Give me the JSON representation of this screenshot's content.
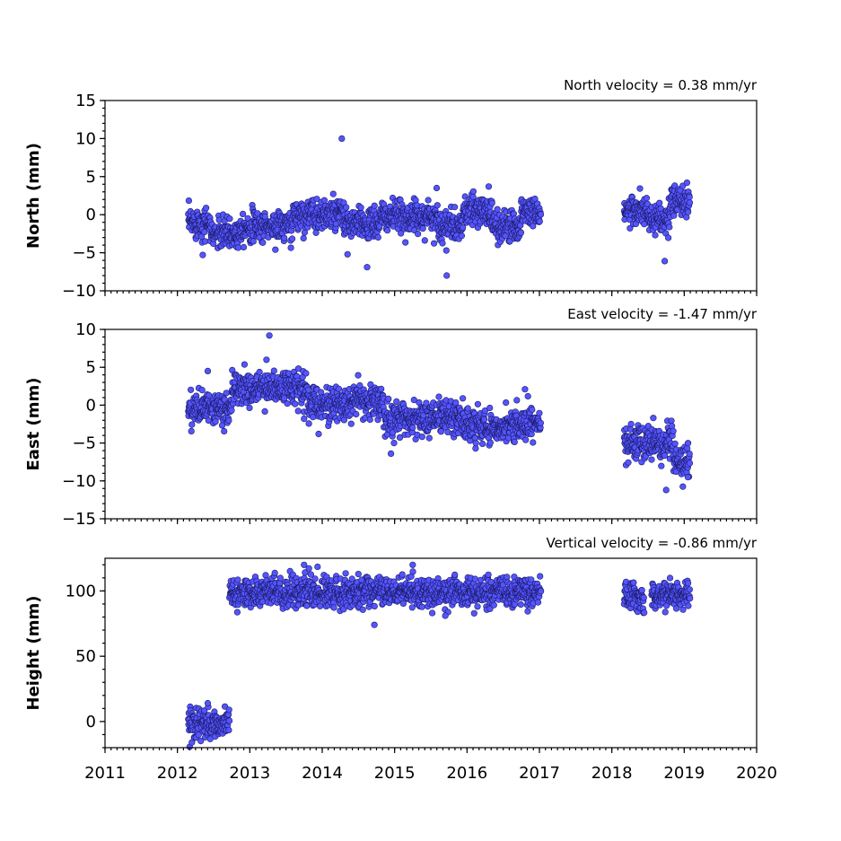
{
  "chart_data": [
    {
      "type": "scatter",
      "title": "North velocity = 0.38 mm/yr",
      "ylabel": "North (mm)",
      "xlim": [
        2011,
        2020
      ],
      "ylim": [
        -10,
        15
      ],
      "yticks": [
        -10,
        -5,
        0,
        5,
        10,
        15
      ],
      "yticklabels": [
        "−10",
        "−5",
        "0",
        "5",
        "10",
        "15"
      ],
      "color": "#5555ff",
      "segments": [
        {
          "start": 2012.15,
          "end": 2012.45,
          "mean": -1.0
        },
        {
          "start": 2012.45,
          "end": 2012.85,
          "mean": -2.5
        },
        {
          "start": 2012.85,
          "end": 2013.6,
          "mean": -1.5
        },
        {
          "start": 2013.6,
          "end": 2014.3,
          "mean": 0.0
        },
        {
          "start": 2014.3,
          "end": 2014.8,
          "mean": -1.2
        },
        {
          "start": 2014.8,
          "end": 2015.6,
          "mean": -0.3
        },
        {
          "start": 2015.6,
          "end": 2015.95,
          "mean": -1.5
        },
        {
          "start": 2015.95,
          "end": 2016.35,
          "mean": 0.5
        },
        {
          "start": 2016.35,
          "end": 2016.75,
          "mean": -1.5
        },
        {
          "start": 2016.75,
          "end": 2017.02,
          "mean": 0.5
        },
        {
          "start": 2018.17,
          "end": 2018.5,
          "mean": 0.5
        },
        {
          "start": 2018.5,
          "end": 2018.8,
          "mean": -0.8
        },
        {
          "start": 2018.8,
          "end": 2019.08,
          "mean": 1.8
        }
      ],
      "scatter_sd": 1.0,
      "outliers": [
        {
          "x": 2014.27,
          "y": 10.0
        },
        {
          "x": 2015.58,
          "y": 3.5
        },
        {
          "x": 2016.3,
          "y": 3.7
        },
        {
          "x": 2012.35,
          "y": -5.3
        },
        {
          "x": 2014.35,
          "y": -5.2
        },
        {
          "x": 2014.62,
          "y": -6.9
        },
        {
          "x": 2015.72,
          "y": -8.0
        },
        {
          "x": 2018.73,
          "y": -6.1
        }
      ]
    },
    {
      "type": "scatter",
      "title": "East velocity = -1.47 mm/yr",
      "ylabel": "East (mm)",
      "xlim": [
        2011,
        2020
      ],
      "ylim": [
        -15,
        10
      ],
      "yticks": [
        -15,
        -10,
        -5,
        0,
        5,
        10
      ],
      "yticklabels": [
        "−15",
        "−10",
        "−5",
        "0",
        "5",
        "10"
      ],
      "color": "#5555ff",
      "segments": [
        {
          "start": 2012.15,
          "end": 2012.75,
          "mean": -0.5
        },
        {
          "start": 2012.75,
          "end": 2013.2,
          "mean": 2.2
        },
        {
          "start": 2013.2,
          "end": 2013.8,
          "mean": 2.3
        },
        {
          "start": 2013.8,
          "end": 2014.4,
          "mean": 0.2
        },
        {
          "start": 2014.4,
          "end": 2014.85,
          "mean": 0.5
        },
        {
          "start": 2014.85,
          "end": 2015.5,
          "mean": -1.8
        },
        {
          "start": 2015.5,
          "end": 2015.95,
          "mean": -1.5
        },
        {
          "start": 2015.95,
          "end": 2016.45,
          "mean": -2.8
        },
        {
          "start": 2016.45,
          "end": 2017.02,
          "mean": -2.5
        },
        {
          "start": 2018.17,
          "end": 2018.85,
          "mean": -5.0
        },
        {
          "start": 2018.85,
          "end": 2019.08,
          "mean": -7.5
        }
      ],
      "scatter_sd": 1.1,
      "outliers": [
        {
          "x": 2013.27,
          "y": 9.2
        },
        {
          "x": 2013.23,
          "y": 6.0
        },
        {
          "x": 2012.42,
          "y": 4.5
        },
        {
          "x": 2016.8,
          "y": 2.1
        },
        {
          "x": 2013.75,
          "y": -1.8
        },
        {
          "x": 2013.95,
          "y": -3.8
        },
        {
          "x": 2014.95,
          "y": -6.4
        },
        {
          "x": 2018.75,
          "y": -11.2
        },
        {
          "x": 2019.05,
          "y": -9.5
        }
      ]
    },
    {
      "type": "scatter",
      "title": "Vertical velocity = -0.86 mm/yr",
      "ylabel": "Height (mm)",
      "xlim": [
        2011,
        2020
      ],
      "ylim": [
        -20,
        125
      ],
      "yticks": [
        0,
        50,
        100
      ],
      "yticklabels": [
        "0",
        "50",
        "100"
      ],
      "xticks": [
        2011,
        2012,
        2013,
        2014,
        2015,
        2016,
        2017,
        2018,
        2019,
        2020
      ],
      "xticklabels": [
        "2011",
        "2012",
        "2013",
        "2014",
        "2015",
        "2016",
        "2017",
        "2018",
        "2019",
        "2020"
      ],
      "color": "#5555ff",
      "segments": [
        {
          "start": 2012.15,
          "end": 2012.72,
          "mean": -2
        },
        {
          "start": 2012.72,
          "end": 2017.02,
          "mean": 99
        },
        {
          "start": 2018.17,
          "end": 2018.45,
          "mean": 97
        },
        {
          "start": 2018.55,
          "end": 2019.08,
          "mean": 97
        }
      ],
      "scatter_sd": 5.5,
      "outliers": [
        {
          "x": 2013.75,
          "y": 120
        },
        {
          "x": 2015.25,
          "y": 120
        },
        {
          "x": 2014.72,
          "y": 74
        },
        {
          "x": 2015.7,
          "y": 81
        },
        {
          "x": 2012.42,
          "y": 14
        },
        {
          "x": 2012.2,
          "y": -16
        }
      ]
    }
  ]
}
